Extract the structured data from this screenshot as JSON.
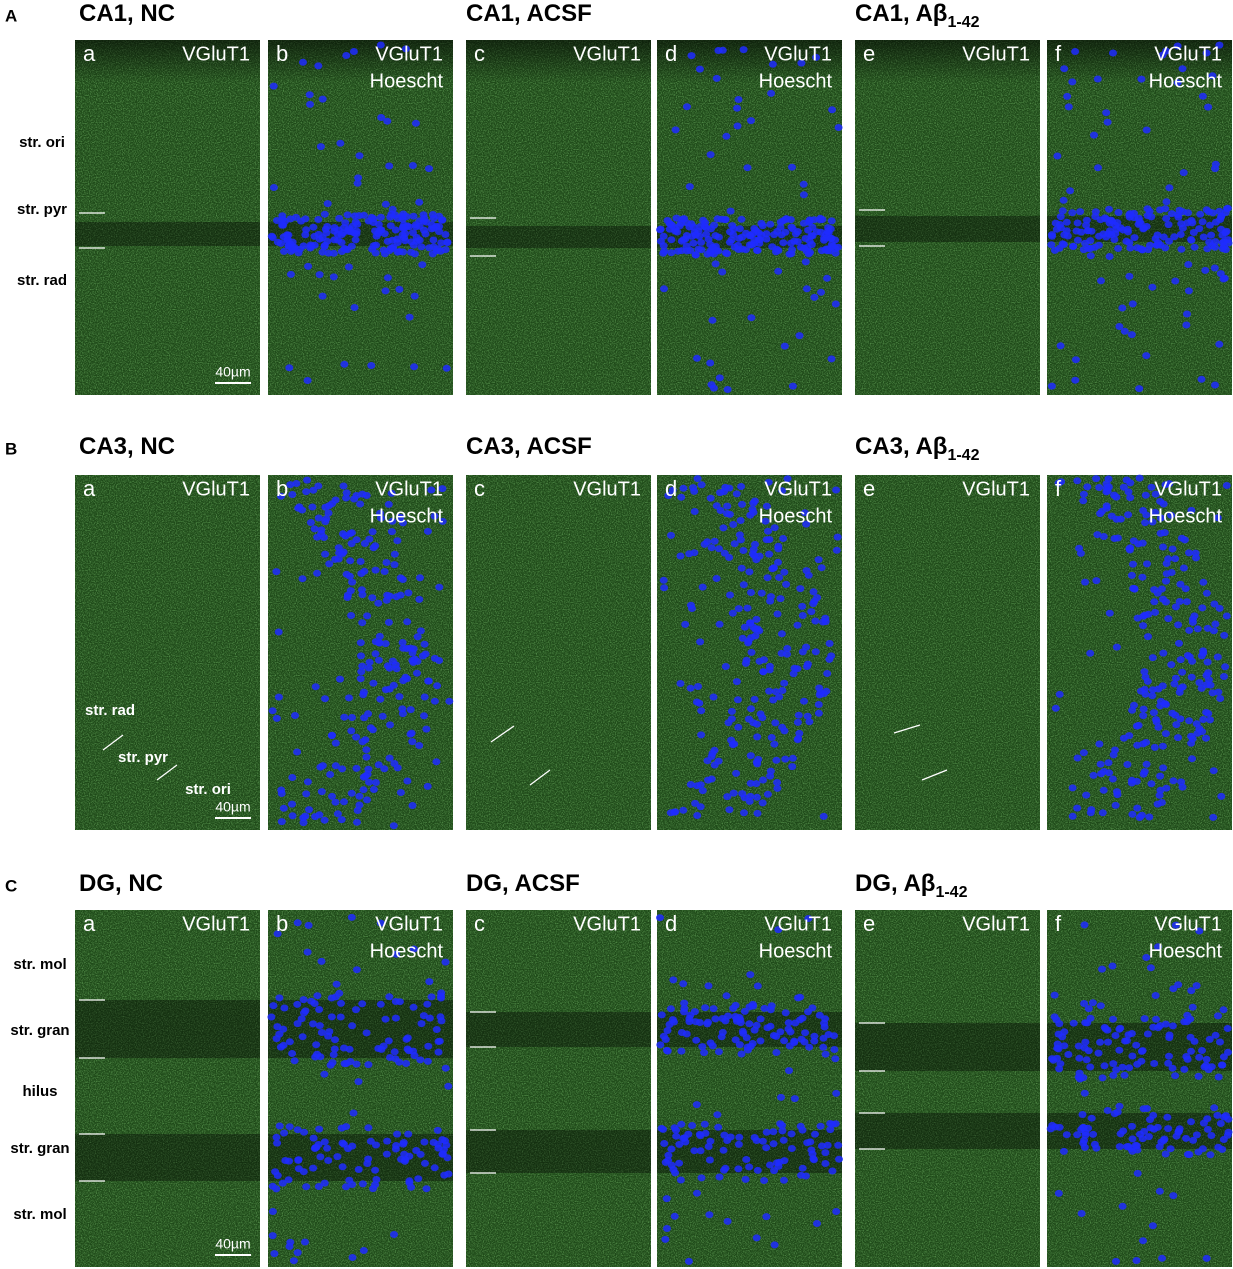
{
  "sections": [
    {
      "letter": "A",
      "scale_bar": "40µm",
      "layer_labels": [
        "str. ori",
        "str. pyr",
        "str. rad"
      ],
      "groups": [
        {
          "title": "CA1, NC",
          "panels": [
            {
              "letter": "a",
              "labels": [
                "VGluT1"
              ]
            },
            {
              "letter": "b",
              "labels": [
                "VGluT1",
                "Hoescht"
              ]
            }
          ]
        },
        {
          "title": "CA1, ACSF",
          "panels": [
            {
              "letter": "c",
              "labels": [
                "VGluT1"
              ]
            },
            {
              "letter": "d",
              "labels": [
                "VGluT1",
                "Hoescht"
              ]
            }
          ]
        },
        {
          "title": "CA1, Aβ",
          "title_sub": "1-42",
          "panels": [
            {
              "letter": "e",
              "labels": [
                "VGluT1"
              ]
            },
            {
              "letter": "f",
              "labels": [
                "VGluT1",
                "Hoescht"
              ]
            }
          ]
        }
      ]
    },
    {
      "letter": "B",
      "scale_bar": "40µm",
      "layer_labels": [
        "str. rad",
        "str. pyr",
        "str. ori"
      ],
      "groups": [
        {
          "title": "CA3, NC",
          "panels": [
            {
              "letter": "a",
              "labels": [
                "VGluT1"
              ]
            },
            {
              "letter": "b",
              "labels": [
                "VGluT1",
                "Hoescht"
              ]
            }
          ]
        },
        {
          "title": "CA3, ACSF",
          "panels": [
            {
              "letter": "c",
              "labels": [
                "VGluT1"
              ]
            },
            {
              "letter": "d",
              "labels": [
                "VGluT1",
                "Hoescht"
              ]
            }
          ]
        },
        {
          "title": "CA3, Aβ",
          "title_sub": "1-42",
          "panels": [
            {
              "letter": "e",
              "labels": [
                "VGluT1"
              ]
            },
            {
              "letter": "f",
              "labels": [
                "VGluT1",
                "Hoescht"
              ]
            }
          ]
        }
      ]
    },
    {
      "letter": "C",
      "scale_bar": "40µm",
      "layer_labels": [
        "str. mol",
        "str. gran",
        "hilus",
        "str. gran",
        "str. mol"
      ],
      "groups": [
        {
          "title": "DG, NC",
          "panels": [
            {
              "letter": "a",
              "labels": [
                "VGluT1"
              ]
            },
            {
              "letter": "b",
              "labels": [
                "VGluT1",
                "Hoescht"
              ]
            }
          ]
        },
        {
          "title": "DG, ACSF",
          "panels": [
            {
              "letter": "c",
              "labels": [
                "VGluT1"
              ]
            },
            {
              "letter": "d",
              "labels": [
                "VGluT1",
                "Hoescht"
              ]
            }
          ]
        },
        {
          "title": "DG, Aβ",
          "title_sub": "1-42",
          "panels": [
            {
              "letter": "e",
              "labels": [
                "VGluT1"
              ]
            },
            {
              "letter": "f",
              "labels": [
                "VGluT1",
                "Hoescht"
              ]
            }
          ]
        }
      ]
    }
  ]
}
